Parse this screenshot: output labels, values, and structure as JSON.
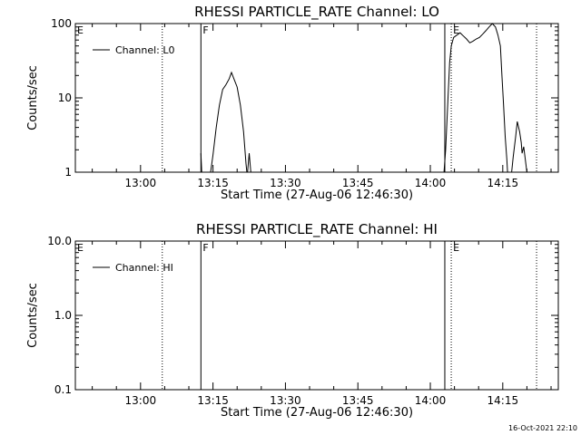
{
  "footer": {
    "timestamp": "16-Oct-2021 22:10"
  },
  "chart_data": [
    {
      "type": "line",
      "title": "RHESSI PARTICLE_RATE Channel: LO",
      "xlabel": "Start Time (27-Aug-06 12:46:30)",
      "ylabel": "Counts/sec",
      "yscale": "log",
      "xlim": [
        "12:46:30",
        "14:26:30"
      ],
      "ylim": [
        1,
        100
      ],
      "x_tick_labels": [
        "13:00",
        "13:15",
        "13:30",
        "13:45",
        "14:00",
        "14:15"
      ],
      "y_tick_labels": [
        "1",
        "10",
        "100"
      ],
      "legend": {
        "position": "top-left",
        "entries": [
          "Channel: L0"
        ]
      },
      "markers": [
        {
          "time": "12:46:30",
          "label": "E",
          "style": "solid"
        },
        {
          "time": "13:04:30",
          "label": "",
          "style": "dotted"
        },
        {
          "time": "13:12:30",
          "label": "F",
          "style": "solid"
        },
        {
          "time": "14:03:00",
          "label": "",
          "style": "solid"
        },
        {
          "time": "14:04:20",
          "label": "E",
          "style": "dotted"
        },
        {
          "time": "14:22:00",
          "label": "",
          "style": "dotted"
        }
      ],
      "series": [
        {
          "name": "Channel: L0",
          "segments": [
            [
              [
                "13:12:30",
                1.8
              ],
              [
                "13:12:40",
                1.0
              ]
            ],
            [
              [
                "13:14:30",
                1.0
              ],
              [
                "13:15:00",
                1.7
              ],
              [
                "13:15:40",
                4.0
              ],
              [
                "13:16:20",
                8.0
              ],
              [
                "13:17:00",
                13.0
              ],
              [
                "13:17:40",
                15.0
              ],
              [
                "13:18:20",
                18.0
              ],
              [
                "13:18:50",
                22.0
              ],
              [
                "13:19:20",
                18.0
              ],
              [
                "13:20:00",
                14.0
              ],
              [
                "13:20:40",
                8.0
              ],
              [
                "13:21:20",
                3.5
              ],
              [
                "13:21:50",
                1.3
              ],
              [
                "13:22:00",
                1.0
              ]
            ],
            [
              [
                "13:22:10",
                1.0
              ],
              [
                "13:22:30",
                1.8
              ],
              [
                "13:22:50",
                1.0
              ]
            ],
            [
              [
                "14:02:50",
                1.0
              ],
              [
                "14:03:10",
                2.0
              ],
              [
                "14:03:40",
                10.0
              ],
              [
                "14:04:00",
                30.0
              ],
              [
                "14:04:20",
                50.0
              ],
              [
                "14:04:50",
                65.0
              ],
              [
                "14:05:30",
                70.0
              ],
              [
                "14:06:10",
                75.0
              ],
              [
                "14:06:50",
                68.0
              ],
              [
                "14:07:30",
                62.0
              ],
              [
                "14:08:10",
                55.0
              ],
              [
                "14:08:50",
                58.0
              ],
              [
                "14:09:30",
                62.0
              ],
              [
                "14:10:10",
                65.0
              ],
              [
                "14:10:50",
                72.0
              ],
              [
                "14:11:30",
                80.0
              ],
              [
                "14:12:10",
                90.0
              ],
              [
                "14:12:50",
                100.0
              ],
              [
                "14:13:30",
                90.0
              ],
              [
                "14:14:00",
                70.0
              ],
              [
                "14:14:30",
                50.0
              ],
              [
                "14:14:50",
                20.0
              ],
              [
                "14:15:10",
                8.0
              ],
              [
                "14:15:30",
                3.0
              ],
              [
                "14:15:50",
                1.5
              ],
              [
                "14:16:00",
                1.0
              ]
            ],
            [
              [
                "14:16:50",
                1.0
              ],
              [
                "14:17:10",
                1.6
              ],
              [
                "14:17:40",
                3.0
              ],
              [
                "14:18:00",
                4.8
              ],
              [
                "14:18:30",
                3.5
              ],
              [
                "14:18:50",
                2.5
              ],
              [
                "14:19:00",
                1.8
              ],
              [
                "14:19:20",
                2.2
              ],
              [
                "14:19:40",
                1.5
              ],
              [
                "14:20:00",
                1.0
              ]
            ]
          ]
        }
      ]
    },
    {
      "type": "line",
      "title": "RHESSI PARTICLE_RATE Channel: HI",
      "xlabel": "Start Time (27-Aug-06 12:46:30)",
      "ylabel": "Counts/sec",
      "yscale": "log",
      "xlim": [
        "12:46:30",
        "14:26:30"
      ],
      "ylim": [
        0.1,
        10
      ],
      "x_tick_labels": [
        "13:00",
        "13:15",
        "13:30",
        "13:45",
        "14:00",
        "14:15"
      ],
      "y_tick_labels": [
        "0.1",
        "1.0",
        "10.0"
      ],
      "legend": {
        "position": "top-left",
        "entries": [
          "Channel: HI"
        ]
      },
      "markers": [
        {
          "time": "12:46:30",
          "label": "E",
          "style": "solid"
        },
        {
          "time": "13:04:30",
          "label": "",
          "style": "dotted"
        },
        {
          "time": "13:12:30",
          "label": "F",
          "style": "solid"
        },
        {
          "time": "14:03:00",
          "label": "",
          "style": "solid"
        },
        {
          "time": "14:04:20",
          "label": "E",
          "style": "dotted"
        },
        {
          "time": "14:22:00",
          "label": "",
          "style": "dotted"
        }
      ],
      "series": [
        {
          "name": "Channel: HI",
          "segments": []
        }
      ]
    }
  ]
}
